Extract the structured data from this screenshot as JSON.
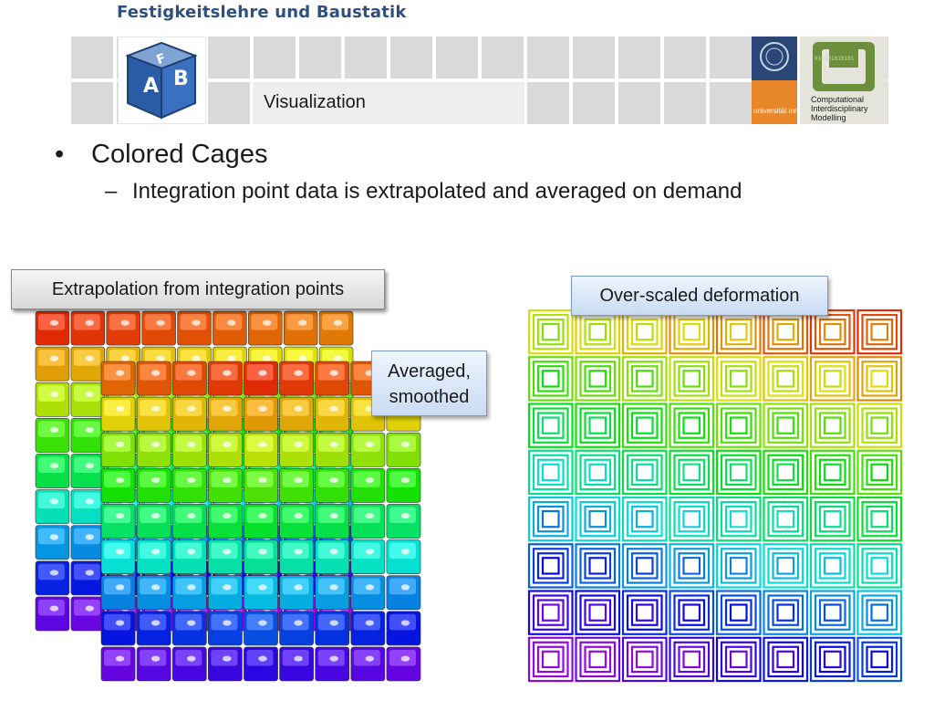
{
  "header": {
    "dept_title": "Festigkeitslehre und Baustatik",
    "slide_title": "Visualization",
    "abf_logo_letters": [
      "A",
      "B",
      "F"
    ],
    "university_logo_text": "universität innsbruck",
    "cim_logo_text": [
      "Computational",
      "Interdisciplinary",
      "Modelling"
    ],
    "cim_binary": "010101010101"
  },
  "bullets": {
    "level1_marker": "•",
    "level1": "Colored Cages",
    "level2_marker": "–",
    "level2": "Integration point data is extrapolated and averaged on demand"
  },
  "callouts": {
    "extrapolation": "Extrapolation from integration points",
    "averaged_line1": "Averaged,",
    "averaged_line2": "smoothed",
    "overscaled": "Over-scaled deformation"
  },
  "colors": {
    "dept_title": "#2e4f7f",
    "tile": "#d9d9d9",
    "title_box": "#eeeeee",
    "cim_green": "#6b8f3a"
  }
}
